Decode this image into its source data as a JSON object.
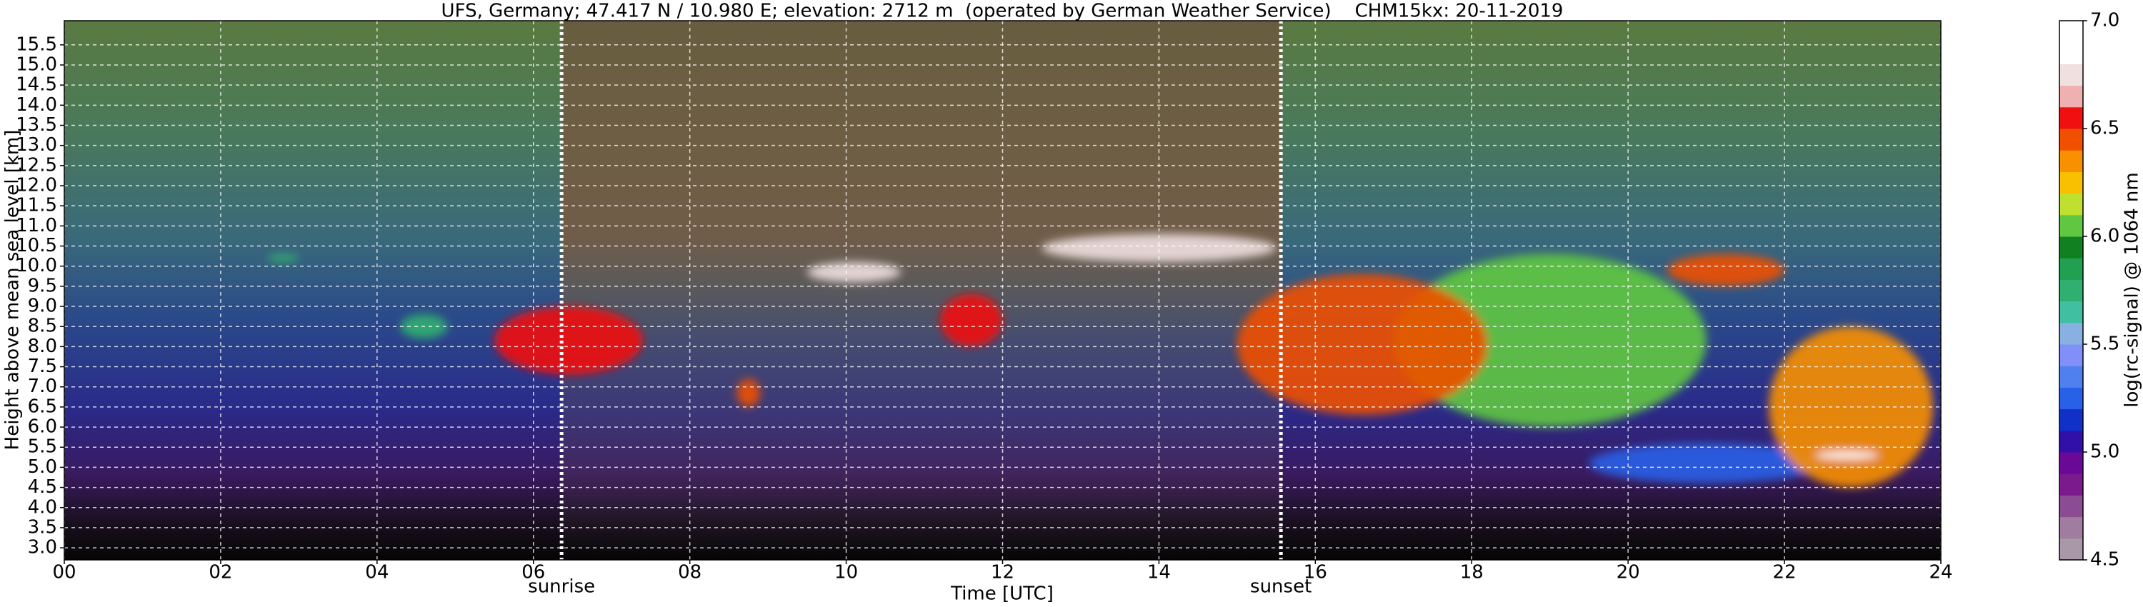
{
  "chart_data": {
    "type": "heatmap",
    "title": "UFS, Germany; 47.417 N / 10.980 E; elevation: 2712 m  (operated by German Weather Service)    CHM15kx: 20-11-2019",
    "xlabel": "Time [UTC]",
    "ylabel": "Height above mean sea level [km]",
    "colorbar_label": "log(rc-signal) @ 1064 nm",
    "xlim": [
      0,
      24
    ],
    "xticks": [
      {
        "value": 0,
        "label": "00"
      },
      {
        "value": 2,
        "label": "02"
      },
      {
        "value": 4,
        "label": "04"
      },
      {
        "value": 6,
        "label": "06"
      },
      {
        "value": 8,
        "label": "08"
      },
      10,
      12,
      14,
      16,
      18,
      20,
      22,
      24
    ],
    "ylim": [
      2.7,
      16.1
    ],
    "yticks": [
      {
        "value": 3,
        "label": "3.0"
      },
      3.5,
      {
        "value": 4,
        "label": "4.0"
      },
      4.5,
      {
        "value": 5,
        "label": "5.0"
      },
      5.5,
      {
        "value": 6,
        "label": "6.0"
      },
      6.5,
      {
        "value": 7,
        "label": "7.0"
      },
      7.5,
      {
        "value": 8,
        "label": "8.0"
      },
      8.5,
      {
        "value": 9,
        "label": "9.0"
      },
      9.5,
      {
        "value": 10,
        "label": "10.0"
      },
      10.5,
      {
        "value": 11,
        "label": "11.0"
      },
      11.5,
      {
        "value": 12,
        "label": "12.0"
      },
      12.5,
      {
        "value": 13,
        "label": "13.0"
      },
      13.5,
      {
        "value": 14,
        "label": "14.0"
      },
      14.5,
      {
        "value": 15,
        "label": "15.0"
      },
      15.5
    ],
    "grid": true,
    "clim": [
      4.5,
      7.0
    ],
    "cticks": [
      4.5,
      {
        "value": 5,
        "label": "5.0"
      },
      5.5,
      {
        "value": 6,
        "label": "6.0"
      },
      6.5,
      {
        "value": 7,
        "label": "7.0"
      }
    ],
    "colormap": [
      "#a898a8",
      "#a07ca0",
      "#8c4c94",
      "#7a1a8c",
      "#6a0898",
      "#3010a8",
      "#1030c8",
      "#2860e8",
      "#5080f0",
      "#8090f8",
      "#88b0e0",
      "#40c0a0",
      "#30b070",
      "#20a050",
      "#108020",
      "#60c840",
      "#c0e030",
      "#f8c000",
      "#f89000",
      "#f05000",
      "#f01010",
      "#f0b0b0",
      "#f0e0e0",
      "#ffffff",
      "#ffffff"
    ],
    "annotations": [
      {
        "text": "sunrise",
        "x": 6.36
      },
      {
        "text": "sunset",
        "x": 15.56
      }
    ],
    "features": [
      {
        "t0": 2.6,
        "t1": 3.0,
        "h0": 10.1,
        "h1": 10.3,
        "value": 5.7
      },
      {
        "t0": 4.3,
        "t1": 4.9,
        "h0": 8.2,
        "h1": 8.8,
        "value": 5.8
      },
      {
        "t0": 5.5,
        "t1": 7.4,
        "h0": 7.3,
        "h1": 9.0,
        "value": 6.6
      },
      {
        "t0": 8.6,
        "t1": 8.9,
        "h0": 6.5,
        "h1": 7.2,
        "value": 6.4
      },
      {
        "t0": 9.5,
        "t1": 10.7,
        "h0": 9.6,
        "h1": 10.1,
        "value": 6.7
      },
      {
        "t0": 11.2,
        "t1": 12.0,
        "h0": 8.0,
        "h1": 9.3,
        "value": 6.6
      },
      {
        "t0": 12.5,
        "t1": 15.5,
        "h0": 10.1,
        "h1": 10.8,
        "value": 6.7
      },
      {
        "t0": 17.0,
        "t1": 21.0,
        "h0": 6.0,
        "h1": 10.3,
        "value": 6.1
      },
      {
        "t0": 15.0,
        "t1": 18.2,
        "h0": 6.3,
        "h1": 9.8,
        "value": 6.4
      },
      {
        "t0": 20.5,
        "t1": 22.0,
        "h0": 9.5,
        "h1": 10.3,
        "value": 6.4
      },
      {
        "t0": 19.5,
        "t1": 22.5,
        "h0": 4.6,
        "h1": 5.6,
        "value": 5.2
      },
      {
        "t0": 21.8,
        "t1": 23.9,
        "h0": 4.5,
        "h1": 8.5,
        "value": 6.3
      },
      {
        "t0": 22.4,
        "t1": 23.2,
        "h0": 5.2,
        "h1": 5.4,
        "value": 7.0
      }
    ]
  }
}
